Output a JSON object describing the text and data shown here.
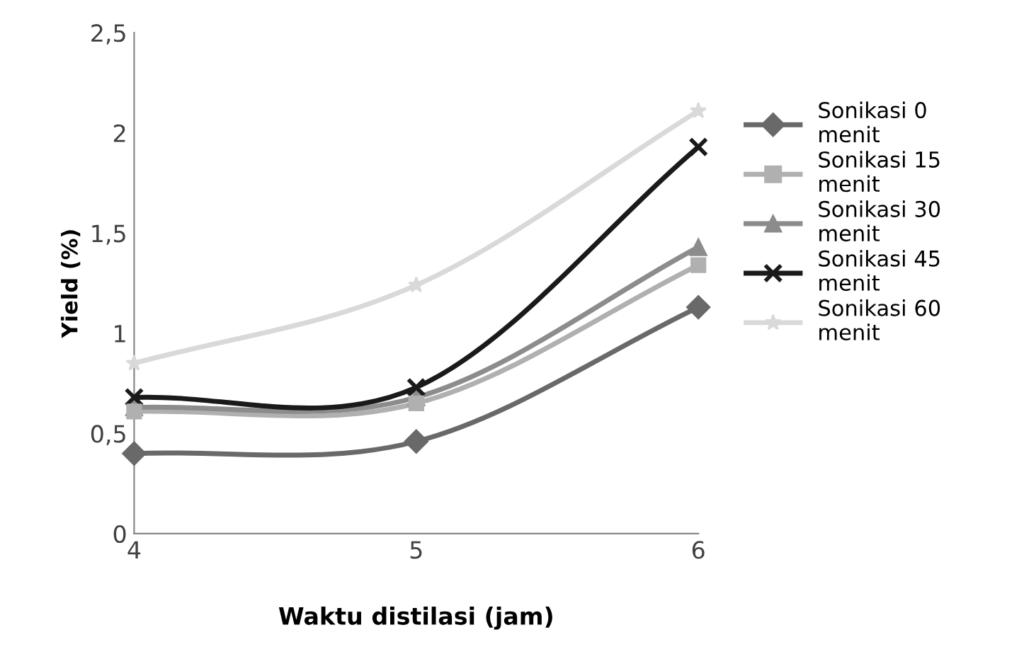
{
  "chart_data": {
    "type": "line",
    "xlabel": "Waktu distilasi (jam)",
    "ylabel": "Yield (%)",
    "x": [
      4,
      5,
      6
    ],
    "xlim": [
      4,
      6
    ],
    "xticks": [
      4,
      5,
      6
    ],
    "ylim": [
      0,
      2.5
    ],
    "yticks": [
      0,
      {
        "value": 0.5,
        "label": "0,5"
      },
      1,
      {
        "value": 1.5,
        "label": "1,5"
      },
      2,
      {
        "value": 2.5,
        "label": "2,5"
      }
    ],
    "grid": false,
    "legend": "right",
    "line_style": "solid",
    "series": [
      {
        "name": "Sonikasi 0 menit",
        "color": "#696969",
        "marker": "diamond",
        "values": [
          0.4,
          0.46,
          1.13
        ]
      },
      {
        "name": "Sonikasi 15 menit",
        "color": "#b0b0b0",
        "marker": "square",
        "values": [
          0.61,
          0.65,
          1.34
        ]
      },
      {
        "name": "Sonikasi 30 menit",
        "color": "#8c8c8c",
        "marker": "triangle",
        "values": [
          0.63,
          0.68,
          1.43
        ]
      },
      {
        "name": "Sonikasi 45 menit",
        "color": "#1a1a1a",
        "marker": "cross",
        "values": [
          0.68,
          0.73,
          1.93
        ]
      },
      {
        "name": "Sonikasi 60 menit",
        "color": "#d9d9d9",
        "marker": "star",
        "values": [
          0.85,
          1.24,
          2.11
        ]
      }
    ]
  }
}
